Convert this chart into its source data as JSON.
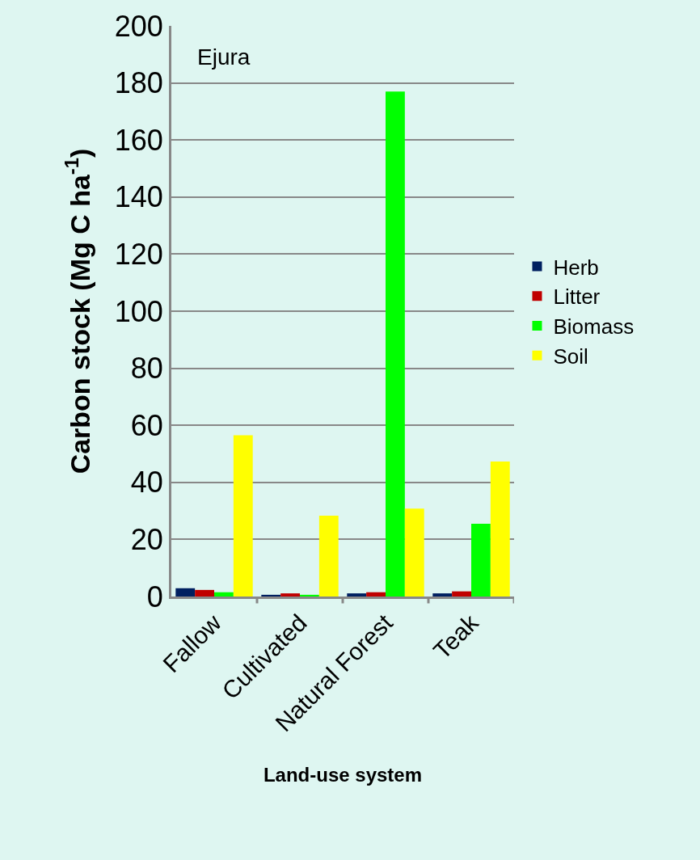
{
  "chart_data": {
    "type": "bar",
    "annotations": [
      "Ejura"
    ],
    "xlabel": "Land-use system",
    "ylabel": "Carbon stock (Mg C ha$^{-1}$)",
    "categories": [
      "Fallow",
      "Cultivated",
      "Natural Forest",
      "Teak"
    ],
    "series": [
      {
        "name": "Herb",
        "color": "#002060",
        "values": [
          2.9,
          0.6,
          1.1,
          1.1
        ]
      },
      {
        "name": "Litter",
        "color": "#c00000",
        "values": [
          2.3,
          1.1,
          1.5,
          1.8
        ]
      },
      {
        "name": "Biomass",
        "color": "#00ff00",
        "values": [
          1.5,
          0.6,
          177,
          25.5
        ]
      },
      {
        "name": "Soil",
        "color": "#ffff00",
        "values": [
          56.5,
          28.3,
          30.8,
          47.3
        ]
      }
    ],
    "ylim": [
      0,
      200
    ],
    "yticks": [
      0,
      20,
      40,
      60,
      80,
      100,
      120,
      140,
      160,
      180,
      200
    ],
    "grid": "y",
    "legend": "right"
  }
}
